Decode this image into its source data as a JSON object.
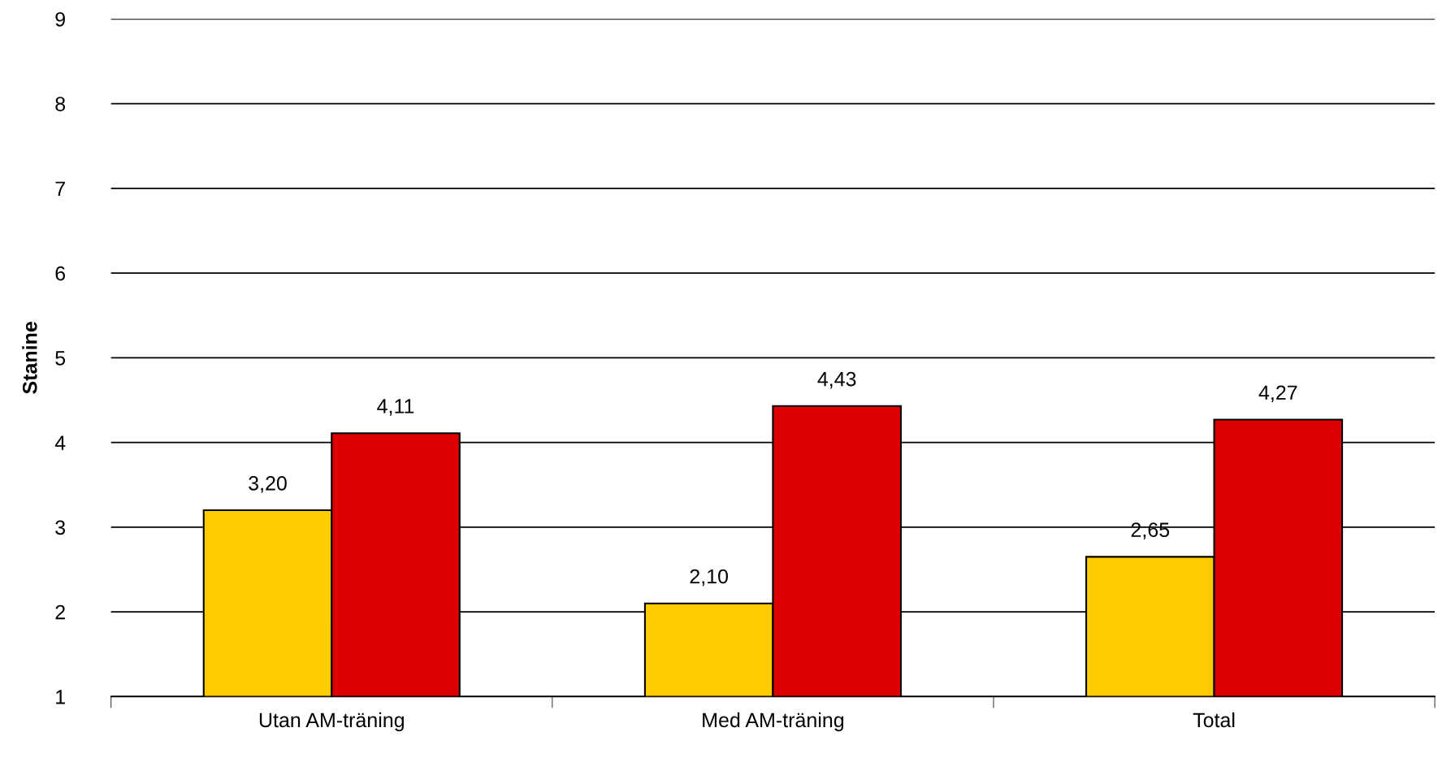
{
  "chart_data": {
    "type": "bar",
    "ylabel": "Stanine",
    "categories": [
      "Utan AM-träning",
      "Med AM-träning",
      "Total"
    ],
    "series": [
      {
        "color": "#ffcc00",
        "values": [
          3.2,
          2.1,
          2.65
        ],
        "value_labels": [
          "3,20",
          "2,10",
          "2,65"
        ]
      },
      {
        "color": "#dd0000",
        "values": [
          4.11,
          4.43,
          4.27
        ],
        "value_labels": [
          "4,11",
          "4,43",
          "4,27"
        ]
      }
    ],
    "ylim": [
      1,
      9
    ],
    "yticks": [
      1,
      2,
      3,
      4,
      5,
      6,
      7,
      8,
      9
    ],
    "grid": "y",
    "legend": false
  }
}
